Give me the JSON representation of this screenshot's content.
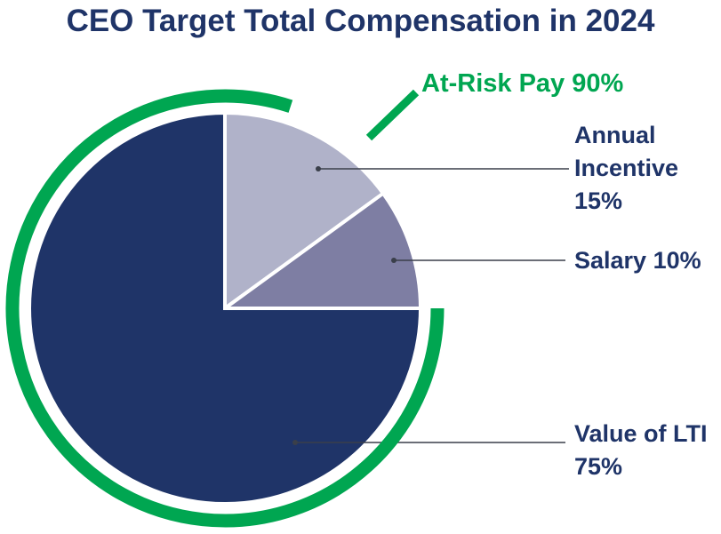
{
  "chart_data": {
    "type": "pie",
    "title": "CEO Target Total Compensation in 2024",
    "slices": [
      {
        "label": "Annual Incentive",
        "value_label": "15%",
        "value": 15,
        "color": "#b0b2c9"
      },
      {
        "label": "Salary",
        "value_label": "10%",
        "value": 10,
        "color": "#7e7ea3"
      },
      {
        "label": "Value of LTI",
        "value_label": "75%",
        "value": 75,
        "color": "#1f3468"
      }
    ],
    "annotation": {
      "label": "At-Risk Pay 90%",
      "value": 90,
      "color": "#00a651"
    }
  }
}
